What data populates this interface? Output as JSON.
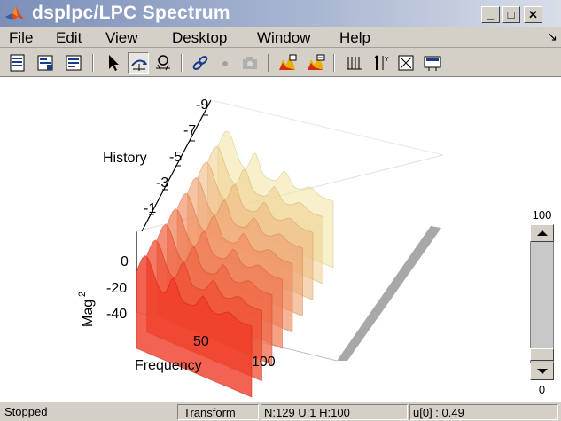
{
  "window": {
    "title": "dsplpc/LPC Spectrum",
    "minimize_glyph": "_",
    "maximize_glyph": "□",
    "close_glyph": "✕"
  },
  "menu": {
    "items": [
      "File",
      "Edit",
      "View",
      "Desktop",
      "Window",
      "Help"
    ],
    "overflow_glyph": "↘"
  },
  "toolbar": {
    "buttons": [
      "print-icon",
      "print-preview-icon",
      "page-setup-icon",
      "select-pointer-icon",
      "rotate-3d-icon",
      "zoom-icon",
      "link-icon",
      "dot-icon",
      "camera-icon",
      "autoscale-icon",
      "restore-view-icon",
      "grid-icon",
      "axes-icon",
      "zoom-fit-icon",
      "properties-icon"
    ]
  },
  "plot": {
    "history_label": "History",
    "history_ticks": [
      "-9",
      "-7",
      "-5",
      "-3",
      "-1"
    ],
    "mag_label": "Mag",
    "mag_exponent": "2",
    "mag_ticks": [
      "0",
      "-20",
      "-40"
    ],
    "frequency_label": "Frequency",
    "frequency_ticks": [
      "50",
      "100"
    ]
  },
  "slider": {
    "max_label": "100",
    "min_label": "0",
    "level_fraction": 1.0
  },
  "status": {
    "state": "Stopped",
    "mode": "Transform",
    "params": "N:129 U:1 H:100",
    "readout": "u[0] : 0.49"
  },
  "colors": {
    "title_gradient_start": "#7b8fb8",
    "front_slice": "#f03c28",
    "back_slice": "#f0e6a0",
    "floor": "#a8a8a8"
  }
}
